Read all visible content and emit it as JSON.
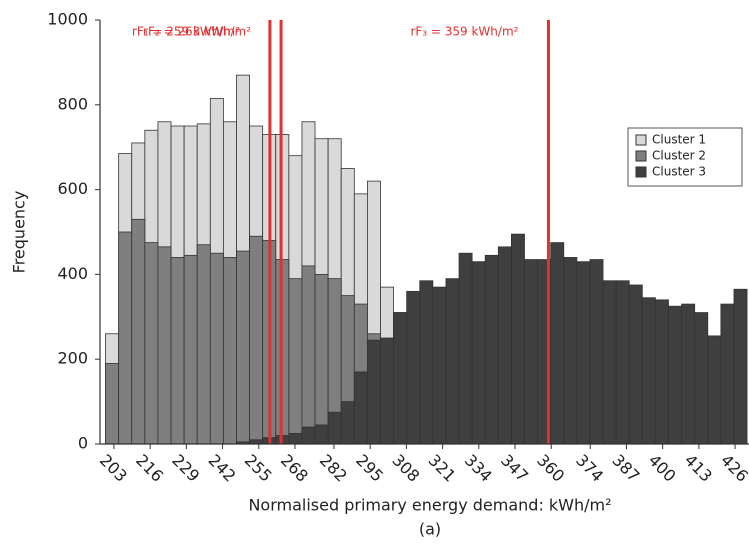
{
  "chart_data": {
    "type": "histogram",
    "xlabel": "Normalised primary energy demand: kWh/m²",
    "ylabel": "Frequency",
    "caption": "(a)",
    "bins": [
      200,
      204.7,
      209.4,
      214.1,
      218.8,
      223.5,
      228.2,
      232.9,
      237.6,
      242.3,
      247,
      251.7,
      256.4,
      261.1,
      265.8,
      270.5,
      275.2,
      279.9,
      284.6,
      289.3,
      294,
      298.7,
      303.4,
      308.1,
      312.8,
      317.5,
      322.2,
      326.9,
      331.6,
      336.3,
      341,
      345.7,
      350.4,
      355.1,
      359.8,
      364.5,
      369.2,
      373.9,
      378.6,
      383.3,
      388,
      392.7,
      397.4,
      402.1,
      406.8,
      411.5,
      416.2,
      420.9,
      425.6,
      430.3
    ],
    "series": [
      {
        "name": "Cluster 1",
        "color": "#d9d9d9",
        "values": [
          260,
          685,
          710,
          740,
          760,
          750,
          750,
          755,
          815,
          760,
          870,
          750,
          730,
          730,
          680,
          760,
          720,
          720,
          650,
          590,
          620,
          370,
          310,
          150,
          90,
          50,
          30,
          15,
          0,
          0,
          0,
          0,
          0,
          0,
          0,
          0,
          0,
          0,
          0,
          0,
          0,
          0,
          0,
          0,
          0,
          0,
          0,
          0,
          0
        ]
      },
      {
        "name": "Cluster 2",
        "color": "#7f7f7f",
        "values": [
          190,
          500,
          530,
          475,
          465,
          440,
          445,
          470,
          450,
          440,
          455,
          490,
          480,
          435,
          390,
          420,
          400,
          390,
          350,
          330,
          260,
          230,
          200,
          170,
          140,
          110,
          90,
          70,
          60,
          45,
          35,
          25,
          20,
          15,
          10,
          8,
          5,
          5,
          5,
          5,
          5,
          5,
          5,
          5,
          5,
          5,
          5,
          5,
          5
        ]
      },
      {
        "name": "Cluster 3",
        "color": "#3f3f3f",
        "values": [
          0,
          0,
          0,
          0,
          0,
          0,
          0,
          0,
          0,
          0,
          5,
          10,
          15,
          20,
          25,
          40,
          45,
          75,
          100,
          170,
          245,
          250,
          310,
          360,
          385,
          370,
          390,
          450,
          430,
          445,
          465,
          495,
          435,
          435,
          475,
          440,
          430,
          435,
          385,
          385,
          375,
          345,
          340,
          325,
          330,
          310,
          255,
          330,
          365
        ]
      }
    ],
    "xlim": [
      198,
      431
    ],
    "xticks": [
      203,
      216,
      229,
      242,
      255,
      268,
      282,
      295,
      308,
      321,
      334,
      347,
      360,
      374,
      387,
      400,
      413,
      426
    ],
    "ylim": [
      0,
      1000
    ],
    "yticks": [
      0,
      200,
      400,
      600,
      800,
      1000
    ],
    "vlines": [
      {
        "value": 259,
        "label": "rF₁ = 259 kWh/m²",
        "color": "#e0302f"
      },
      {
        "value": 263,
        "label": "rF₂ = 263 kWh/m²",
        "color": "#e0302f"
      },
      {
        "value": 359,
        "label": "rF₃ = 359 kWh/m²",
        "color": "#e0302f"
      }
    ],
    "legend": "upper right"
  }
}
